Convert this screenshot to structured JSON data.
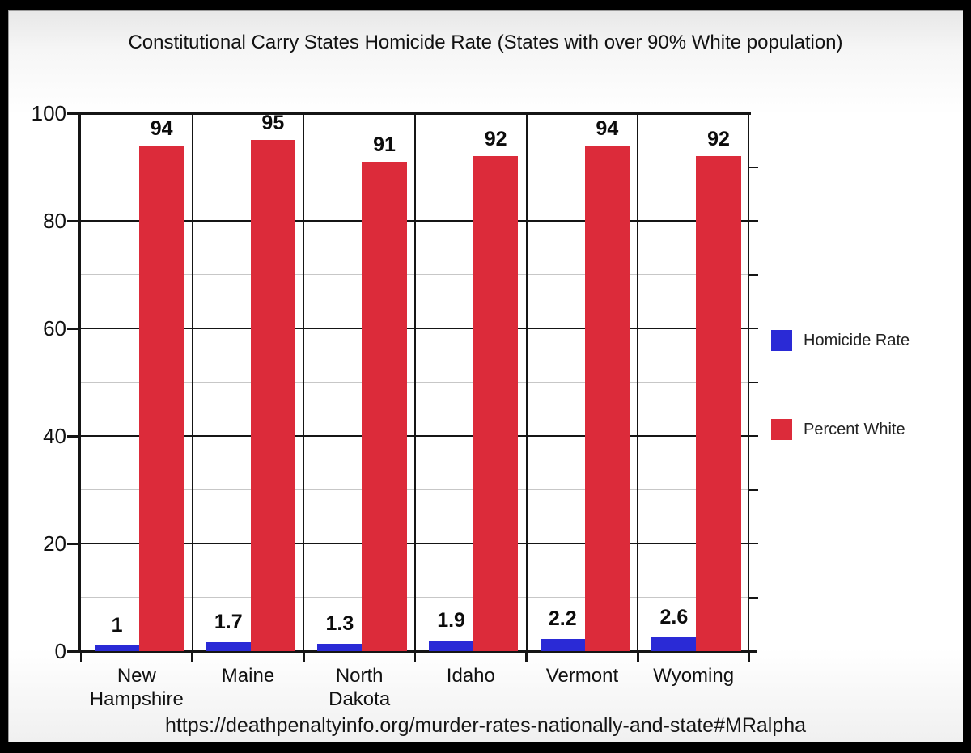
{
  "title": "Constitutional Carry States Homicide Rate (States with over 90% White population)",
  "source_url": "https://deathpenaltyinfo.org/murder-rates-nationally-and-state#MRalpha",
  "colors": {
    "homicide_blue": "#2a2ad6",
    "percent_white_red": "#dc2b3a",
    "major_grid": "#151515",
    "minor_grid": "#c7c7c7",
    "frame": "#000000"
  },
  "legend": [
    {
      "label": "Homicide Rate",
      "color": "#2a2ad6"
    },
    {
      "label": "Percent White",
      "color": "#dc2b3a"
    }
  ],
  "chart_data": {
    "type": "bar",
    "title": "Constitutional Carry States Homicide Rate (States with over 90% White population)",
    "categories": [
      "New Hampshire",
      "Maine",
      "North Dakota",
      "Idaho",
      "Vermont",
      "Wyoming"
    ],
    "series": [
      {
        "name": "Homicide Rate",
        "color": "#2a2ad6",
        "values": [
          1,
          1.7,
          1.3,
          1.9,
          2.2,
          2.6
        ],
        "labels": [
          "1",
          "1.7",
          "1.3",
          "1.9",
          "2.2",
          "2.6"
        ]
      },
      {
        "name": "Percent White",
        "color": "#dc2b3a",
        "values": [
          94,
          95,
          91,
          92,
          94,
          92
        ],
        "labels": [
          "94",
          "95",
          "91",
          "92",
          "94",
          "92"
        ]
      }
    ],
    "y_axis": {
      "min": 0,
      "max": 100,
      "major_ticks": [
        100,
        80,
        60,
        40,
        20,
        0
      ],
      "minor_step": 10
    },
    "grid": true,
    "legend_position": "right",
    "source": "https://deathpenaltyinfo.org/murder-rates-nationally-and-state#MRalpha"
  }
}
